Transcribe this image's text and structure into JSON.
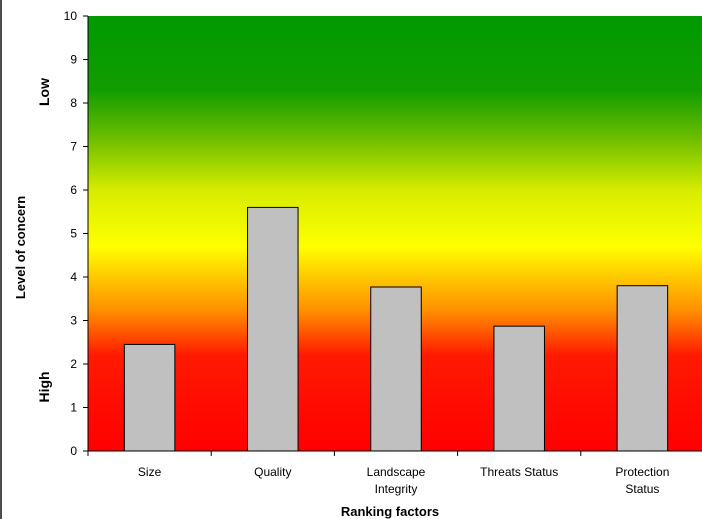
{
  "chart_data": {
    "type": "bar",
    "categories": [
      [
        "Size"
      ],
      [
        "Quality"
      ],
      [
        "Landscape",
        "Integrity"
      ],
      [
        "Threats Status"
      ],
      [
        "Protection",
        "Status"
      ]
    ],
    "values": [
      2.45,
      5.6,
      3.77,
      2.87,
      3.8
    ],
    "xlabel": "Ranking factors",
    "ylabel": "Level of concern",
    "ylim": [
      0,
      10
    ],
    "yticks": [
      0,
      1,
      2,
      3,
      4,
      5,
      6,
      7,
      8,
      9,
      10
    ],
    "bar_color": "#c0c0c0",
    "background_gradient": [
      "#ff0000",
      "#ff8c00",
      "#ffff00",
      "#7ac000",
      "#009a00"
    ],
    "band_labels": {
      "low": "Low",
      "high": "High"
    },
    "grid": false,
    "legend": "none"
  }
}
